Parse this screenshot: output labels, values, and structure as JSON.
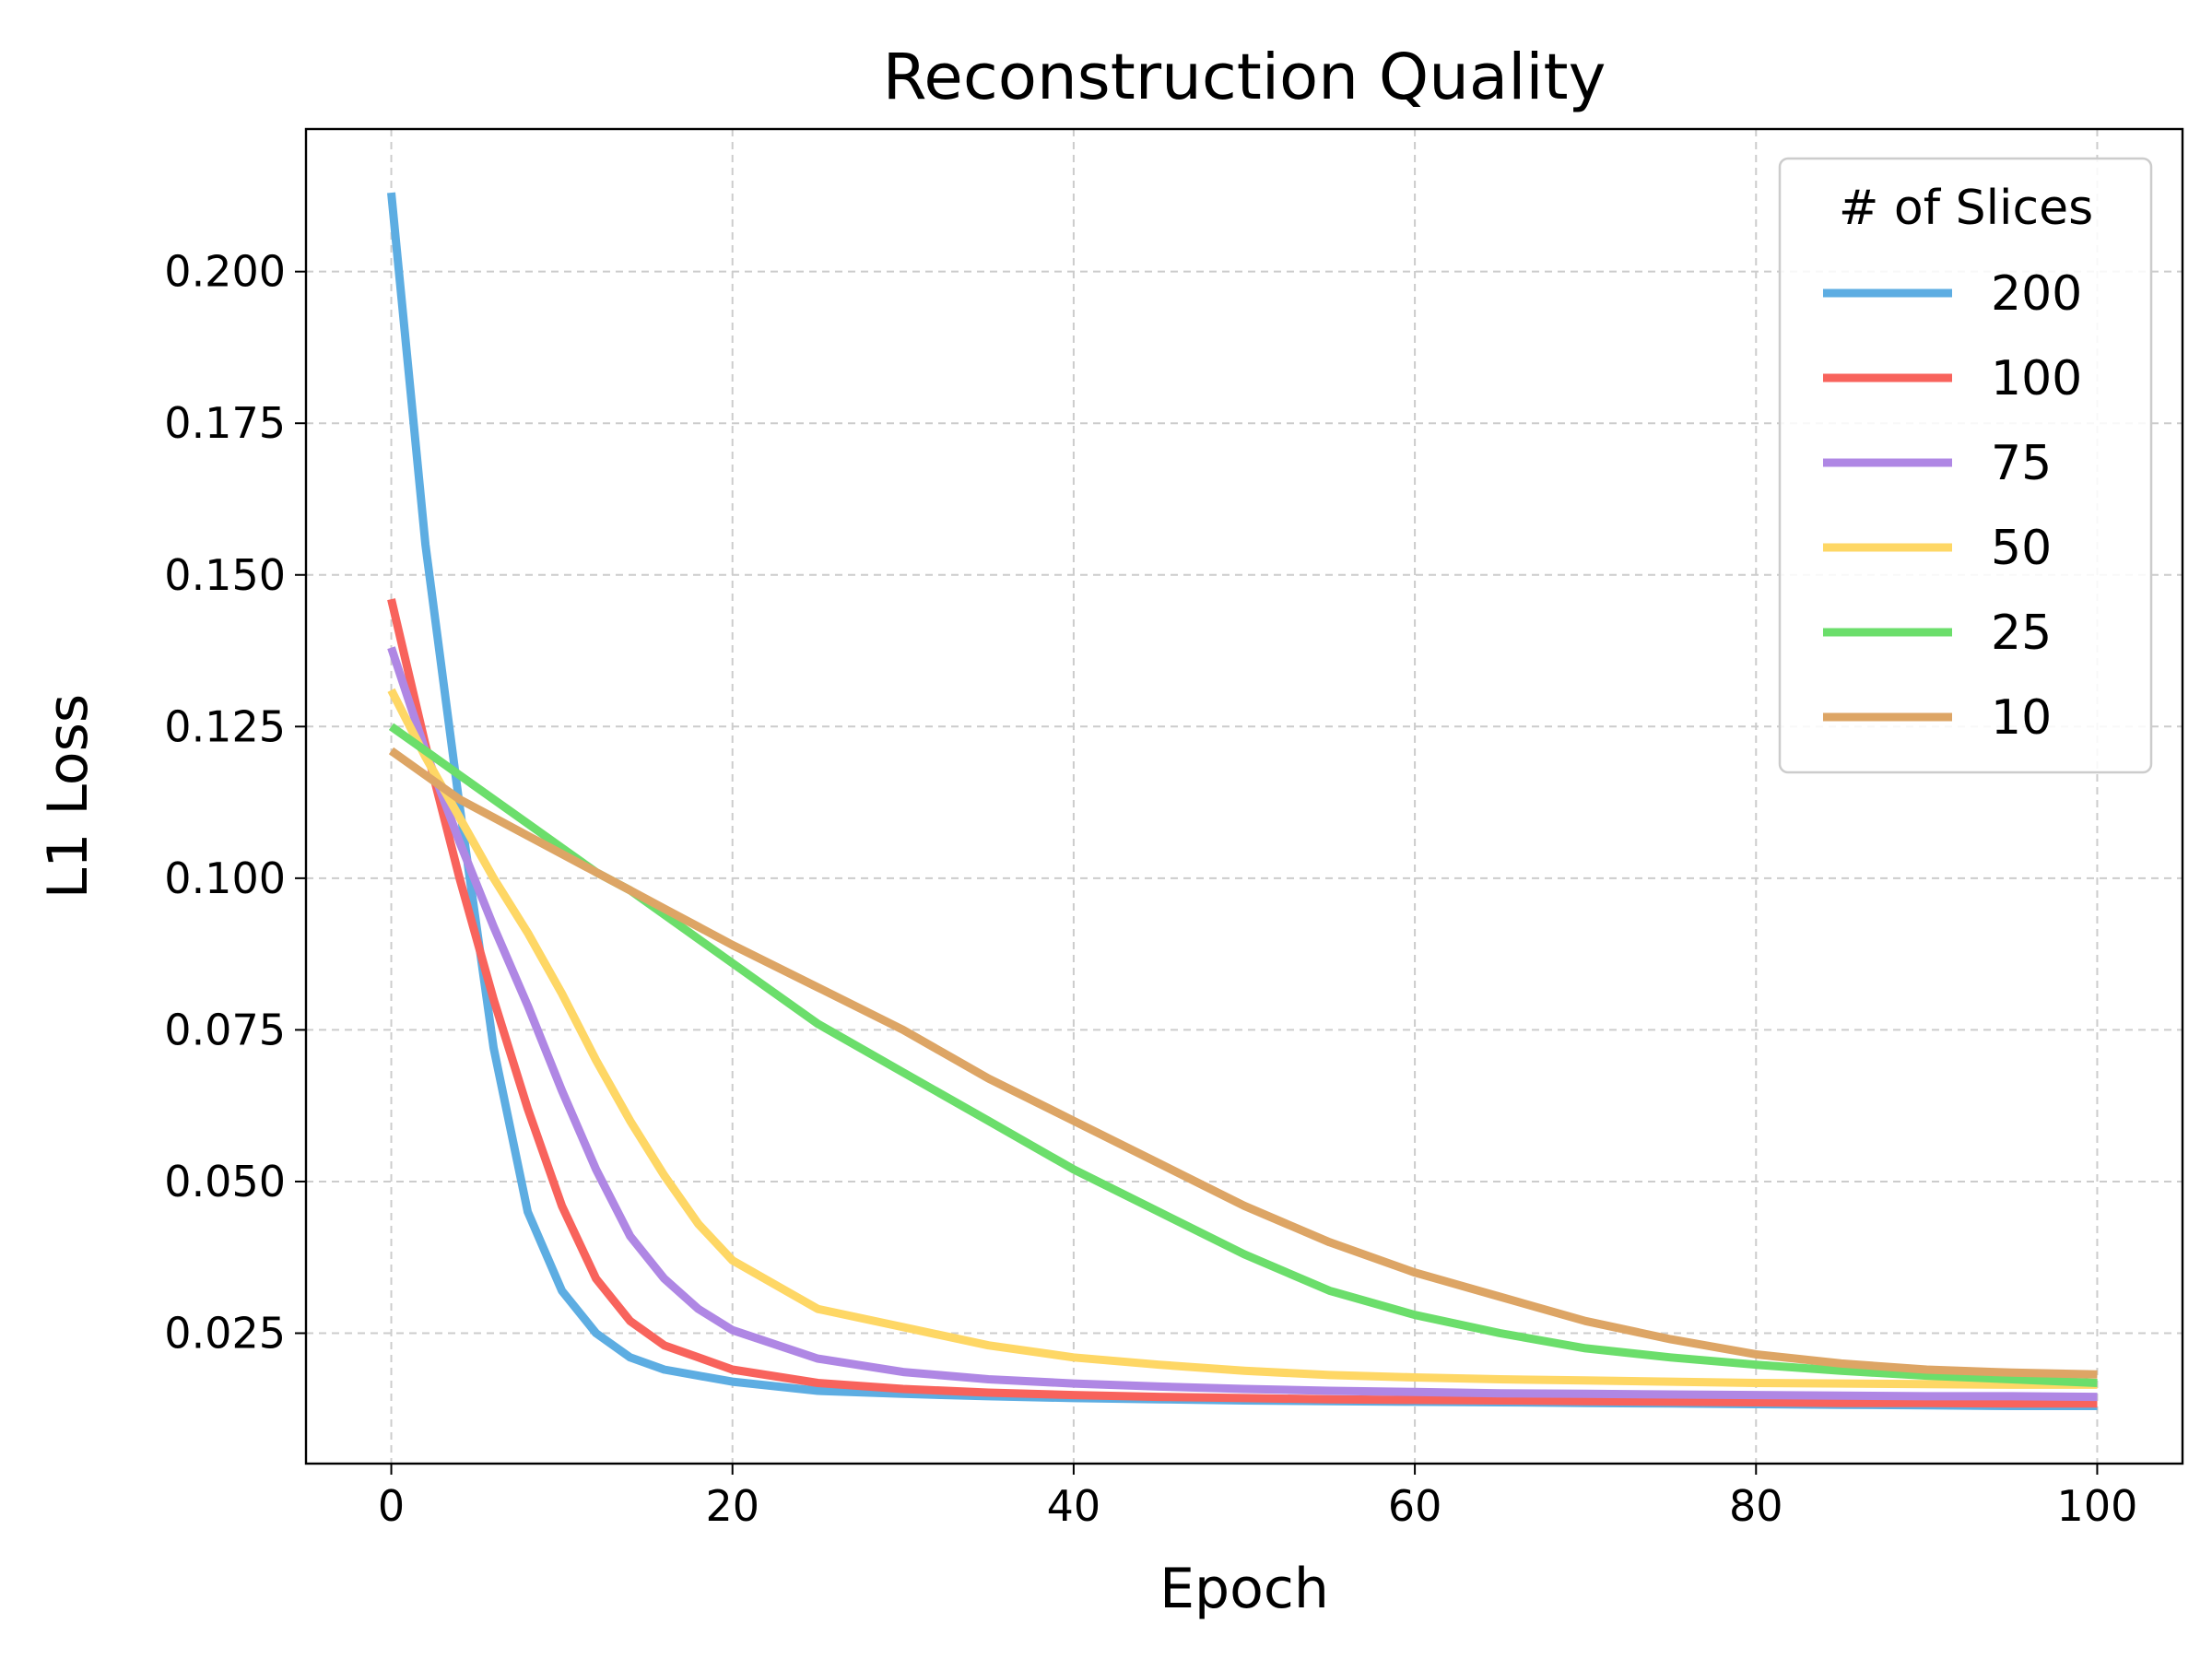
{
  "chart_data": {
    "type": "line",
    "title": "Reconstruction Quality",
    "xlabel": "Epoch",
    "ylabel": "L1 Loss",
    "xlim": [
      -5,
      105
    ],
    "ylim": [
      0.0035,
      0.2235
    ],
    "xticks": [
      0,
      20,
      40,
      60,
      80,
      100
    ],
    "xtick_labels": [
      "0",
      "20",
      "40",
      "60",
      "80",
      "100"
    ],
    "yticks": [
      0.025,
      0.05,
      0.075,
      0.1,
      0.125,
      0.15,
      0.175,
      0.2
    ],
    "ytick_labels": [
      "0.025",
      "0.050",
      "0.075",
      "0.100",
      "0.125",
      "0.150",
      "0.175",
      "0.200"
    ],
    "grid": true,
    "legend": {
      "title": "# of Slices",
      "placement": "top-right"
    },
    "x": [
      0,
      2,
      4,
      6,
      8,
      10,
      12,
      14,
      16,
      18,
      20,
      25,
      30,
      35,
      40,
      45,
      50,
      55,
      60,
      65,
      70,
      75,
      80,
      85,
      90,
      95,
      100
    ],
    "series": [
      {
        "name": "200",
        "color": "#5DADE2",
        "values": [
          0.213,
          0.155,
          0.112,
          0.072,
          0.045,
          0.032,
          0.025,
          0.021,
          0.019,
          0.018,
          0.017,
          0.0155,
          0.015,
          0.0146,
          0.0143,
          0.0141,
          0.0139,
          0.0138,
          0.0137,
          0.0136,
          0.0135,
          0.0134,
          0.0133,
          0.0132,
          0.0131,
          0.013,
          0.013
        ]
      },
      {
        "name": "100",
        "color": "#F8635C",
        "values": [
          0.146,
          0.122,
          0.1,
          0.08,
          0.062,
          0.046,
          0.034,
          0.027,
          0.023,
          0.021,
          0.019,
          0.0168,
          0.0158,
          0.0152,
          0.0148,
          0.0145,
          0.0143,
          0.0141,
          0.014,
          0.0139,
          0.0138,
          0.0137,
          0.0136,
          0.0135,
          0.0135,
          0.0134,
          0.0134
        ]
      },
      {
        "name": "75",
        "color": "#AF87E4",
        "values": [
          0.138,
          0.121,
          0.106,
          0.092,
          0.079,
          0.065,
          0.052,
          0.041,
          0.034,
          0.029,
          0.0255,
          0.0208,
          0.0186,
          0.0174,
          0.0167,
          0.0162,
          0.0158,
          0.0155,
          0.0153,
          0.0151,
          0.015,
          0.0149,
          0.0148,
          0.0147,
          0.0146,
          0.0146,
          0.0145
        ]
      },
      {
        "name": "50",
        "color": "#FED765",
        "values": [
          0.131,
          0.12,
          0.11,
          0.1,
          0.091,
          0.081,
          0.07,
          0.06,
          0.051,
          0.043,
          0.037,
          0.029,
          0.026,
          0.023,
          0.021,
          0.0198,
          0.0188,
          0.0181,
          0.0177,
          0.0174,
          0.0172,
          0.017,
          0.0168,
          0.0167,
          0.0166,
          0.0165,
          0.0165
        ]
      },
      {
        "name": "25",
        "color": "#6BDE6B",
        "values": [
          0.125,
          0.121,
          0.117,
          0.113,
          0.109,
          0.105,
          0.101,
          0.098,
          0.094,
          0.09,
          0.086,
          0.076,
          0.068,
          0.06,
          0.052,
          0.045,
          0.038,
          0.032,
          0.028,
          0.025,
          0.0225,
          0.021,
          0.0198,
          0.0188,
          0.018,
          0.0174,
          0.0168
        ]
      },
      {
        "name": "10",
        "color": "#DDA565",
        "values": [
          0.121,
          0.117,
          0.113,
          0.11,
          0.107,
          0.104,
          0.101,
          0.098,
          0.095,
          0.092,
          0.089,
          0.082,
          0.075,
          0.067,
          0.06,
          0.053,
          0.046,
          0.04,
          0.035,
          0.031,
          0.027,
          0.024,
          0.0215,
          0.02,
          0.019,
          0.0185,
          0.0182
        ]
      }
    ]
  }
}
